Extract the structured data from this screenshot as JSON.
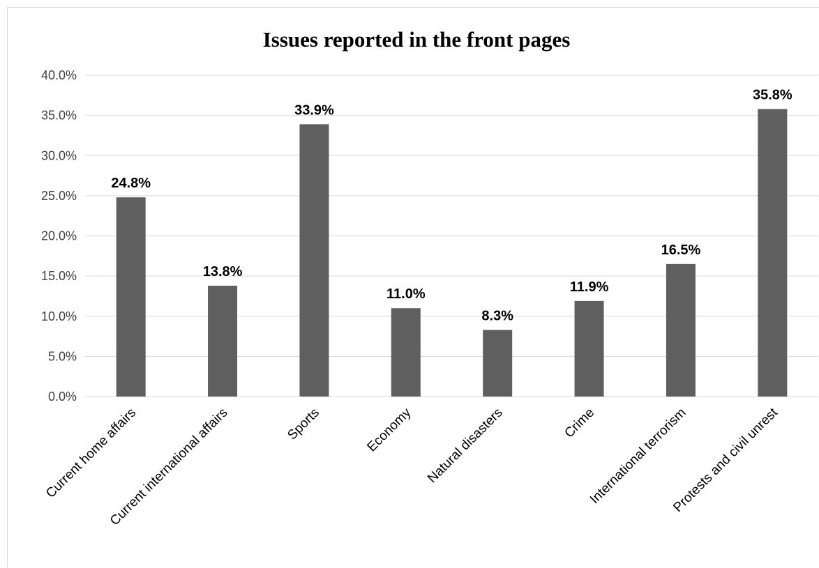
{
  "chart_data": {
    "type": "bar",
    "title": "Issues reported in the front pages",
    "xlabel": "",
    "ylabel": "",
    "categories": [
      "Current home affairs",
      "Current international affairs",
      "Sports",
      "Economy",
      "Natural disasters",
      "Crime",
      "International terrorism",
      "Protests and civil unrest"
    ],
    "values": [
      24.8,
      13.8,
      33.9,
      11.0,
      8.3,
      11.9,
      16.5,
      35.8
    ],
    "data_labels": [
      "24.8%",
      "13.8%",
      "33.9%",
      "11.0%",
      "8.3%",
      "11.9%",
      "16.5%",
      "35.8%"
    ],
    "ylim": [
      0,
      40
    ],
    "y_ticks": [
      0,
      5,
      10,
      15,
      20,
      25,
      30,
      35,
      40
    ],
    "y_tick_labels": [
      "0.0%",
      "5.0%",
      "10.0%",
      "15.0%",
      "20.0%",
      "25.0%",
      "30.0%",
      "35.0%",
      "40.0%"
    ],
    "grid": true,
    "legend": "none",
    "bar_color": "#5f5f5f",
    "grid_color": "#d9d9d9"
  }
}
